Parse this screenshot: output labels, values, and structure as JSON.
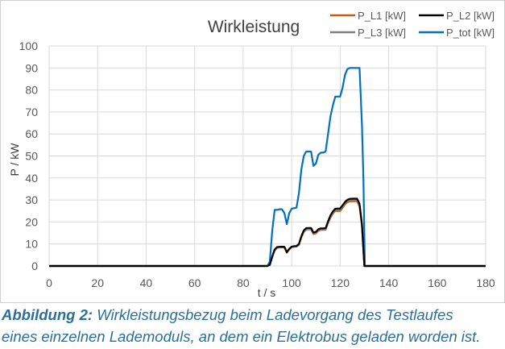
{
  "chart_data": {
    "type": "line",
    "title": "Wirkleistung",
    "xlabel": "t / s",
    "ylabel": "P / kW",
    "xlim": [
      0,
      180
    ],
    "ylim": [
      0,
      100
    ],
    "xticks": [
      0,
      20,
      40,
      60,
      80,
      100,
      120,
      140,
      160,
      180
    ],
    "yticks": [
      0,
      10,
      20,
      30,
      40,
      50,
      60,
      70,
      80,
      90,
      100
    ],
    "grid": true,
    "legend_position": "top-right",
    "series": [
      {
        "name": "P_L1 [kW]",
        "color": "#c55a11",
        "x": [
          0,
          90,
          91,
          92,
          93,
          94,
          95,
          96,
          97,
          98,
          99,
          100,
          101,
          102,
          103,
          104,
          105,
          106,
          107,
          108,
          109,
          110,
          111,
          112,
          113,
          114,
          115,
          116,
          117,
          118,
          119,
          120,
          121,
          122,
          123,
          124,
          125,
          126,
          127,
          128,
          129,
          130,
          131,
          132,
          180
        ],
        "y": [
          0,
          0,
          0.5,
          4,
          7,
          8.2,
          8.4,
          8.5,
          8.4,
          6,
          7.5,
          8.5,
          8.7,
          8.8,
          9.5,
          13,
          15.5,
          16.5,
          16.6,
          16.6,
          14.5,
          14.8,
          16.0,
          16.4,
          16.4,
          16.5,
          19.5,
          22,
          23.8,
          25,
          25,
          25,
          26.5,
          28,
          29,
          29.4,
          29.4,
          29.4,
          29.4,
          27,
          18,
          0,
          0,
          0,
          0
        ]
      },
      {
        "name": "P_L2 [kW]",
        "color": "#000000",
        "x": [
          0,
          90,
          91,
          92,
          93,
          94,
          95,
          96,
          97,
          98,
          99,
          100,
          101,
          102,
          103,
          104,
          105,
          106,
          107,
          108,
          109,
          110,
          111,
          112,
          113,
          114,
          115,
          116,
          117,
          118,
          119,
          120,
          121,
          122,
          123,
          124,
          125,
          126,
          127,
          128,
          129,
          130,
          131,
          132,
          180
        ],
        "y": [
          0,
          0,
          0.5,
          4.3,
          7.5,
          8.6,
          8.7,
          8.8,
          8.7,
          6.3,
          7.8,
          8.8,
          9.0,
          9.1,
          10,
          13.6,
          16.2,
          17.2,
          17.3,
          17.3,
          15.2,
          15.5,
          16.7,
          17.1,
          17.1,
          17.2,
          20.3,
          23,
          24.8,
          26,
          26.1,
          26.1,
          27.6,
          29.1,
          30.1,
          30.5,
          30.6,
          30.6,
          30.6,
          28.2,
          19,
          0,
          0,
          0,
          0
        ]
      },
      {
        "name": "P_L3 [kW]",
        "color": "#7f7f7f",
        "x": [
          0,
          90,
          91,
          92,
          93,
          94,
          95,
          96,
          97,
          98,
          99,
          100,
          101,
          102,
          103,
          104,
          105,
          106,
          107,
          108,
          109,
          110,
          111,
          112,
          113,
          114,
          115,
          116,
          117,
          118,
          119,
          120,
          121,
          122,
          123,
          124,
          125,
          126,
          127,
          128,
          129,
          130,
          131,
          132,
          180
        ],
        "y": [
          0,
          0,
          0.5,
          4.1,
          7.2,
          8.4,
          8.5,
          8.6,
          8.5,
          6.1,
          7.6,
          8.6,
          8.8,
          8.9,
          9.7,
          13.3,
          15.8,
          16.8,
          16.9,
          16.9,
          14.8,
          15.1,
          16.3,
          16.7,
          16.7,
          16.8,
          19.9,
          22.5,
          24.3,
          25.5,
          25.6,
          25.6,
          27.1,
          28.6,
          29.6,
          30.0,
          30.1,
          30.1,
          30.1,
          27.6,
          18.5,
          0,
          0,
          0,
          0
        ]
      },
      {
        "name": "P_tot [kW]",
        "color": "#0070c0",
        "x": [
          0,
          90,
          91,
          92,
          93,
          94,
          95,
          96,
          97,
          98,
          99,
          100,
          101,
          102,
          103,
          104,
          105,
          106,
          107,
          108,
          109,
          110,
          111,
          112,
          113,
          114,
          115,
          116,
          117,
          118,
          119,
          120,
          121,
          122,
          123,
          124,
          125,
          126,
          127,
          128,
          129,
          129.6,
          130.2,
          131,
          132,
          180
        ],
        "y": [
          0,
          0,
          2,
          16,
          25.5,
          25.5,
          25.8,
          25.8,
          24,
          19,
          24,
          26,
          26.3,
          26.5,
          33,
          44,
          50,
          52,
          52,
          52,
          45.5,
          46.5,
          50.5,
          51.5,
          51.5,
          52,
          60,
          68,
          73,
          77,
          77,
          77,
          81,
          87,
          89.5,
          90,
          90,
          90,
          90,
          90,
          64,
          40,
          0,
          0,
          0,
          0
        ]
      }
    ]
  },
  "caption": {
    "label": "Abbildung 2:",
    "line1": "Wirkleistungsbezug beim Ladevorgang des Testlaufes",
    "line2": "eines einzelnen Lademoduls, an dem ein Elektrobus geladen worden ist."
  }
}
